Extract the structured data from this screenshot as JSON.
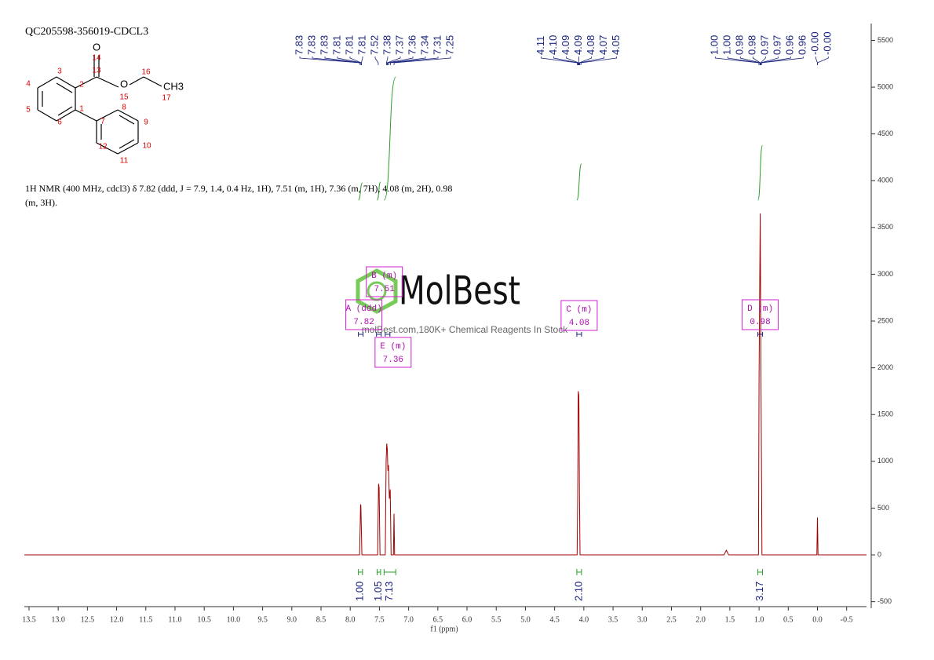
{
  "chart_data": {
    "type": "nmr",
    "title": "QC205598-356019-CDCL3",
    "description": "1H NMR (400 MHz, cdcl3) δ 7.82 (ddd, J = 7.9, 1.4, 0.4 Hz, 1H), 7.51 (m, 1H), 7.36 (m, 7H), 4.08 (m, 2H), 0.98 (m, 3H).",
    "x_label": "f1 (ppm)",
    "xlim": [
      13.58,
      -0.84
    ],
    "ylim": [
      -570,
      5680
    ],
    "xticks": [
      13.5,
      {
        "value": 13,
        "label": "13.0"
      },
      12.5,
      {
        "value": 12,
        "label": "12.0"
      },
      11.5,
      {
        "value": 11,
        "label": "11.0"
      },
      10.5,
      {
        "value": 10,
        "label": "10.0"
      },
      9.5,
      {
        "value": 9,
        "label": "9.0"
      },
      8.5,
      {
        "value": 8,
        "label": "8.0"
      },
      7.5,
      {
        "value": 7,
        "label": "7.0"
      },
      6.5,
      {
        "value": 6,
        "label": "6.0"
      },
      5.5,
      {
        "value": 5,
        "label": "5.0"
      },
      4.5,
      {
        "value": 4,
        "label": "4.0"
      },
      3.5,
      {
        "value": 3,
        "label": "3.0"
      },
      2.5,
      {
        "value": 2,
        "label": "2.0"
      },
      1.5,
      {
        "value": 1,
        "label": "1.0"
      },
      0.5,
      {
        "value": 0,
        "label": "0.0"
      },
      -0.5
    ],
    "yticks": [
      -500,
      0,
      500,
      1000,
      1500,
      2000,
      2500,
      3000,
      3500,
      4000,
      4500,
      5000,
      5500
    ],
    "color": "#a00000",
    "x": [
      13.58,
      7.84,
      7.822,
      7.817,
      7.8,
      7.53,
      7.515,
      7.505,
      7.49,
      7.4,
      7.385,
      7.375,
      7.365,
      7.355,
      7.345,
      7.33,
      7.315,
      7.3,
      7.26,
      7.25,
      7.24,
      4.115,
      4.105,
      4.095,
      4.085,
      4.075,
      4.065,
      1.6,
      1.56,
      1.52,
      1.01,
      1.0,
      0.98,
      0.965,
      0.95,
      0.01,
      0.0,
      -0.01,
      -0.84
    ],
    "values": [
      0,
      0,
      540,
      520,
      0,
      0,
      760,
      720,
      0,
      0,
      1000,
      1190,
      1130,
      900,
      960,
      600,
      700,
      0,
      0,
      440,
      0,
      0,
      600,
      1750,
      1700,
      650,
      0,
      0,
      50,
      0,
      0,
      1850,
      3650,
      1700,
      0,
      0,
      400,
      0,
      0
    ],
    "peak_labels": [
      7.83,
      7.83,
      7.83,
      7.81,
      7.81,
      7.81,
      7.52,
      7.38,
      7.37,
      7.36,
      7.34,
      7.31,
      7.25,
      4.11,
      {
        "value": 4.1,
        "label": "4.10"
      },
      4.09,
      4.09,
      4.08,
      4.07,
      4.05,
      {
        "value": 1,
        "label": "1.00"
      },
      {
        "value": 1,
        "label": "1.00"
      },
      0.98,
      0.98,
      0.97,
      0.97,
      0.96,
      0.96,
      {
        "value": 0,
        "label": "-0.00"
      },
      {
        "value": 0,
        "label": "-0.00"
      }
    ],
    "integrals": {
      "ranges": [
        [
          7.86,
          7.79
        ],
        [
          7.54,
          7.48
        ],
        [
          7.42,
          7.22
        ],
        [
          4.12,
          4.04
        ],
        [
          1.02,
          0.94
        ]
      ],
      "values": [
        1,
        1.05,
        7.13,
        2.1,
        3.17
      ],
      "value_labels": [
        "1.00",
        "1.05",
        "7.13",
        "2.10",
        "3.17"
      ]
    },
    "multiplets": [
      {
        "label": "A (ddd)",
        "shift": 7.82
      },
      {
        "label": "B (m)",
        "shift": 7.51
      },
      {
        "label": "E (m)",
        "shift": 7.36
      },
      {
        "label": "C (m)",
        "shift": 4.08
      },
      {
        "label": "D (m)",
        "shift": 0.98
      }
    ],
    "structure": {
      "labels": [
        "O",
        "14",
        "13",
        "O",
        "15",
        "16",
        "CH3",
        "17",
        "3",
        "2",
        "4",
        "5",
        "1",
        "6",
        "7",
        "8",
        "9",
        "10",
        "11",
        "12"
      ]
    },
    "watermark": {
      "brand": "MolBest",
      "tagline": "molBest.com,180K+ Chemical Reagents In Stock"
    }
  }
}
